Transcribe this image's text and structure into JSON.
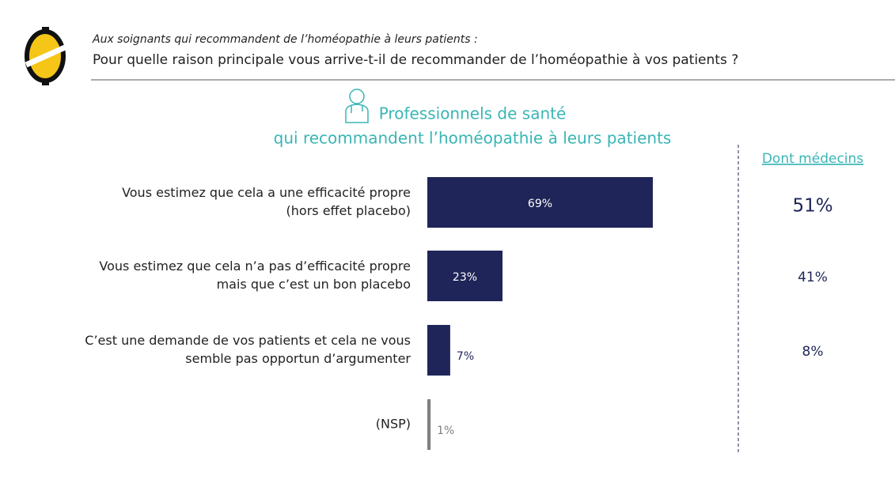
{
  "chart_data": {
    "type": "hbar",
    "subtitle": "Aux soignants qui recommandent de l’homéopathie à leurs patients :",
    "title": "Pour quelle raison principale vous arrive-t-il de recommander de l’homéopathie à vos patients ?",
    "heading": [
      "Professionnels de santé",
      "qui recommandent l’homéopathie à leurs patients"
    ],
    "categories": [
      [
        "Vous estimez que cela a une efficacité propre",
        "(hors effet placebo)"
      ],
      [
        "Vous estimez que cela n’a pas d’efficacité propre",
        "mais que c’est un bon placebo"
      ],
      [
        "C’est une demande de vos patients et cela ne vous",
        "semble pas opportun d’argumenter"
      ],
      [
        "(NSP)"
      ]
    ],
    "values": [
      69,
      23,
      7,
      1
    ],
    "value_labels": [
      "69%",
      "23%",
      "7%",
      "1%"
    ],
    "colors": [
      "#1f2558",
      "#1f2558",
      "#1f2558",
      "#7f7f7f"
    ],
    "side_column": {
      "title": "Dont médecins",
      "values": [
        51,
        41,
        8
      ],
      "value_labels": [
        "51%",
        "41%",
        "8%"
      ]
    }
  }
}
